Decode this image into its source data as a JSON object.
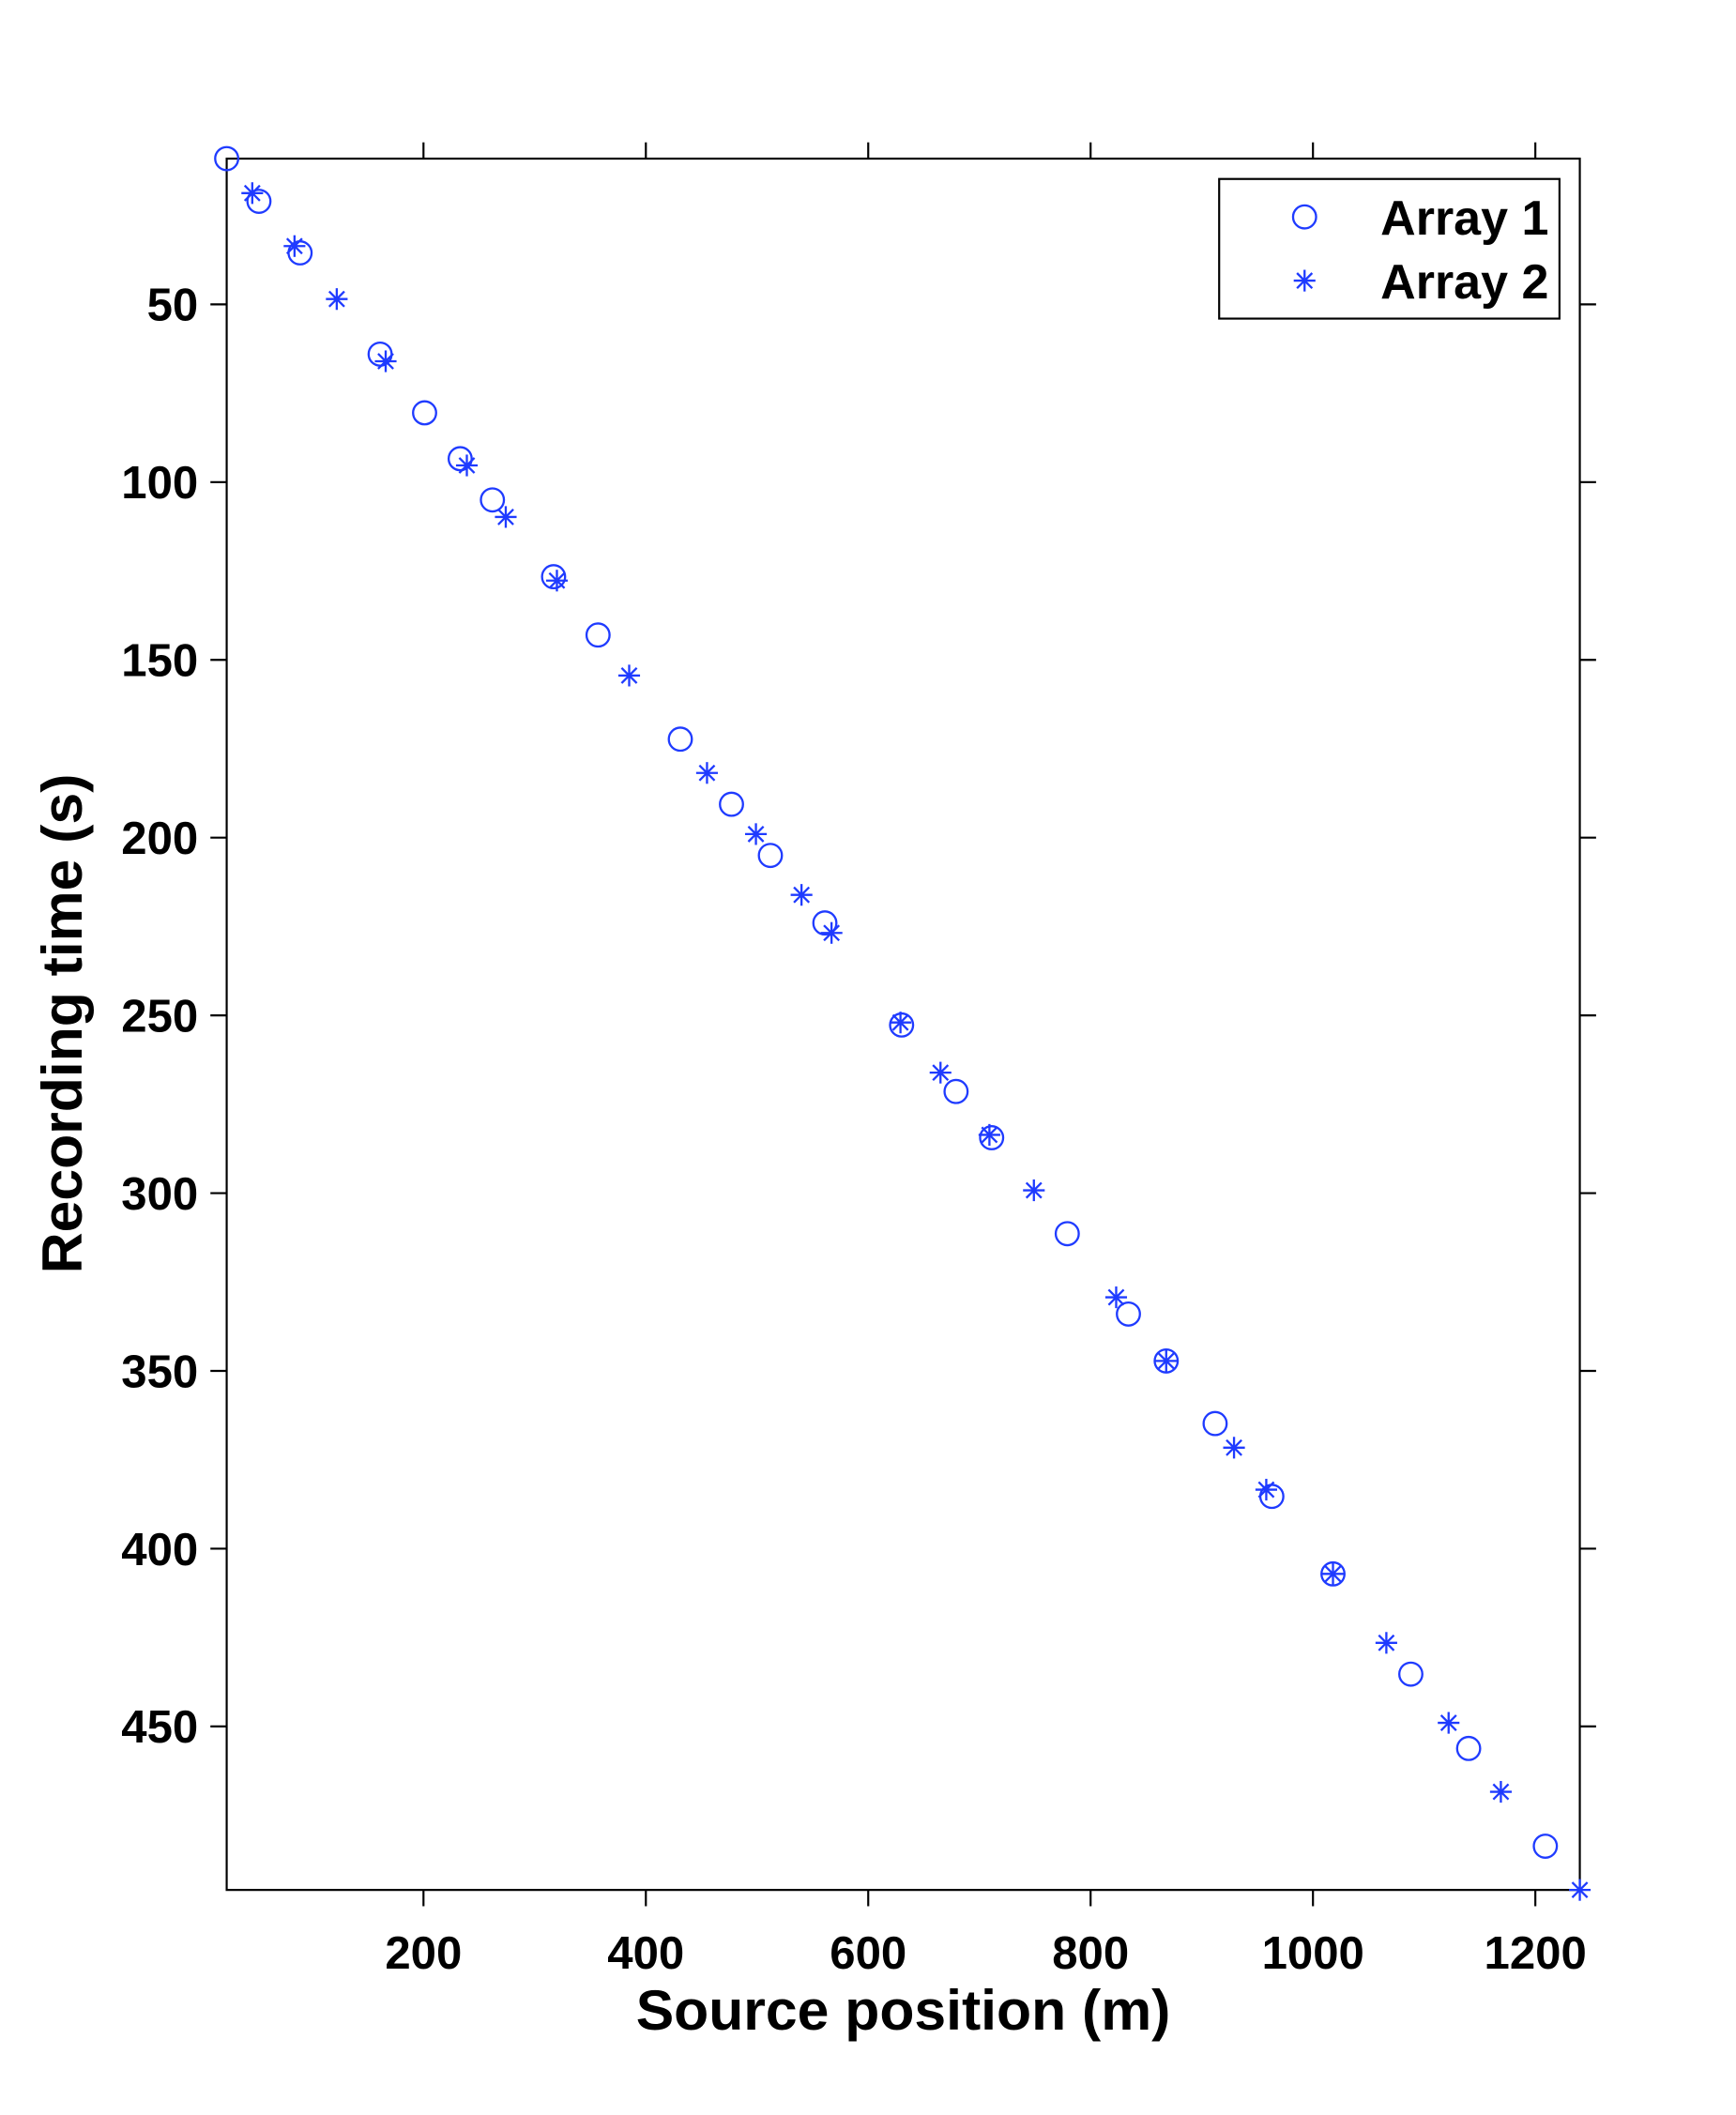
{
  "chart_data": {
    "type": "scatter",
    "xlabel": "Source position (m)",
    "ylabel": "Recording time (s)",
    "xlim": [
      23,
      1240
    ],
    "ylim": [
      9,
      496
    ],
    "y_reversed": true,
    "grid": false,
    "legend_placement": "top-right",
    "xticks": [
      200,
      400,
      600,
      800,
      1000,
      1200
    ],
    "yticks": [
      50,
      100,
      150,
      200,
      250,
      300,
      350,
      400,
      450
    ],
    "marker_color": "#1f3bff",
    "series": [
      {
        "name": "Array 1",
        "marker": "circle",
        "x": [
          23,
          52,
          89,
          161,
          201,
          233,
          262,
          317,
          357,
          431,
          477,
          512,
          561,
          630,
          679,
          711,
          779,
          834,
          868,
          912,
          963,
          1018,
          1088,
          1140,
          1209
        ],
        "y": [
          9,
          21,
          35.5,
          64,
          80.5,
          93.4,
          105,
          126.6,
          143,
          172.3,
          190.6,
          205,
          224,
          252.7,
          271.4,
          284.4,
          311.4,
          334,
          347.2,
          364.8,
          385.3,
          407.1,
          435.3,
          456.2,
          483.7
        ]
      },
      {
        "name": "Array 2",
        "marker": "asterisk",
        "x": [
          46,
          84,
          122,
          166,
          239,
          274,
          320,
          385,
          455,
          499,
          540,
          567,
          629,
          665,
          709,
          749,
          823,
          868,
          929,
          958,
          1018,
          1066,
          1122,
          1169,
          1240
        ],
        "y": [
          18.7,
          33.6,
          48.5,
          66,
          95.3,
          109.8,
          127.7,
          154.4,
          181.8,
          199,
          216.1,
          226.8,
          252,
          266.1,
          283.6,
          299.2,
          329.3,
          347.2,
          371.6,
          383.4,
          407.1,
          426.5,
          449,
          468.4,
          496
        ]
      }
    ]
  }
}
